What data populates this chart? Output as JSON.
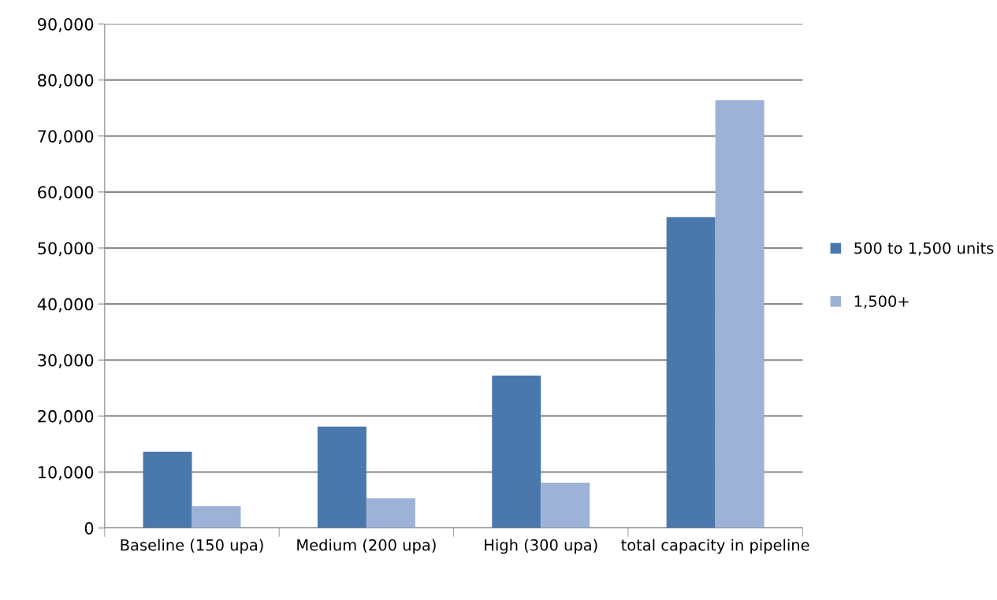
{
  "chart_data": {
    "type": "bar",
    "categories": [
      "Baseline (150 upa)",
      "Medium (200 upa)",
      "High (300 upa)",
      "total capacity in pipeline"
    ],
    "series": [
      {
        "name": "500 to 1,500 units",
        "color": "#4a78ad",
        "values": [
          13600,
          18100,
          27200,
          55500
        ]
      },
      {
        "name": "1,500+",
        "color": "#9db2d6",
        "values": [
          3900,
          5300,
          8100,
          76400
        ]
      }
    ],
    "ylim": [
      0,
      90000
    ],
    "yticks": [
      0,
      {
        "value": 10000,
        "label": "10,000"
      },
      {
        "value": 20000,
        "label": "20,000"
      },
      {
        "value": 30000,
        "label": "30,000"
      },
      {
        "value": 40000,
        "label": "40,000"
      },
      {
        "value": 50000,
        "label": "50,000"
      },
      {
        "value": 60000,
        "label": "60,000"
      },
      {
        "value": 70000,
        "label": "70,000"
      },
      {
        "value": 80000,
        "label": "80,000"
      },
      {
        "value": 90000,
        "label": "90,000"
      }
    ],
    "grid": "y",
    "legend": "right"
  }
}
